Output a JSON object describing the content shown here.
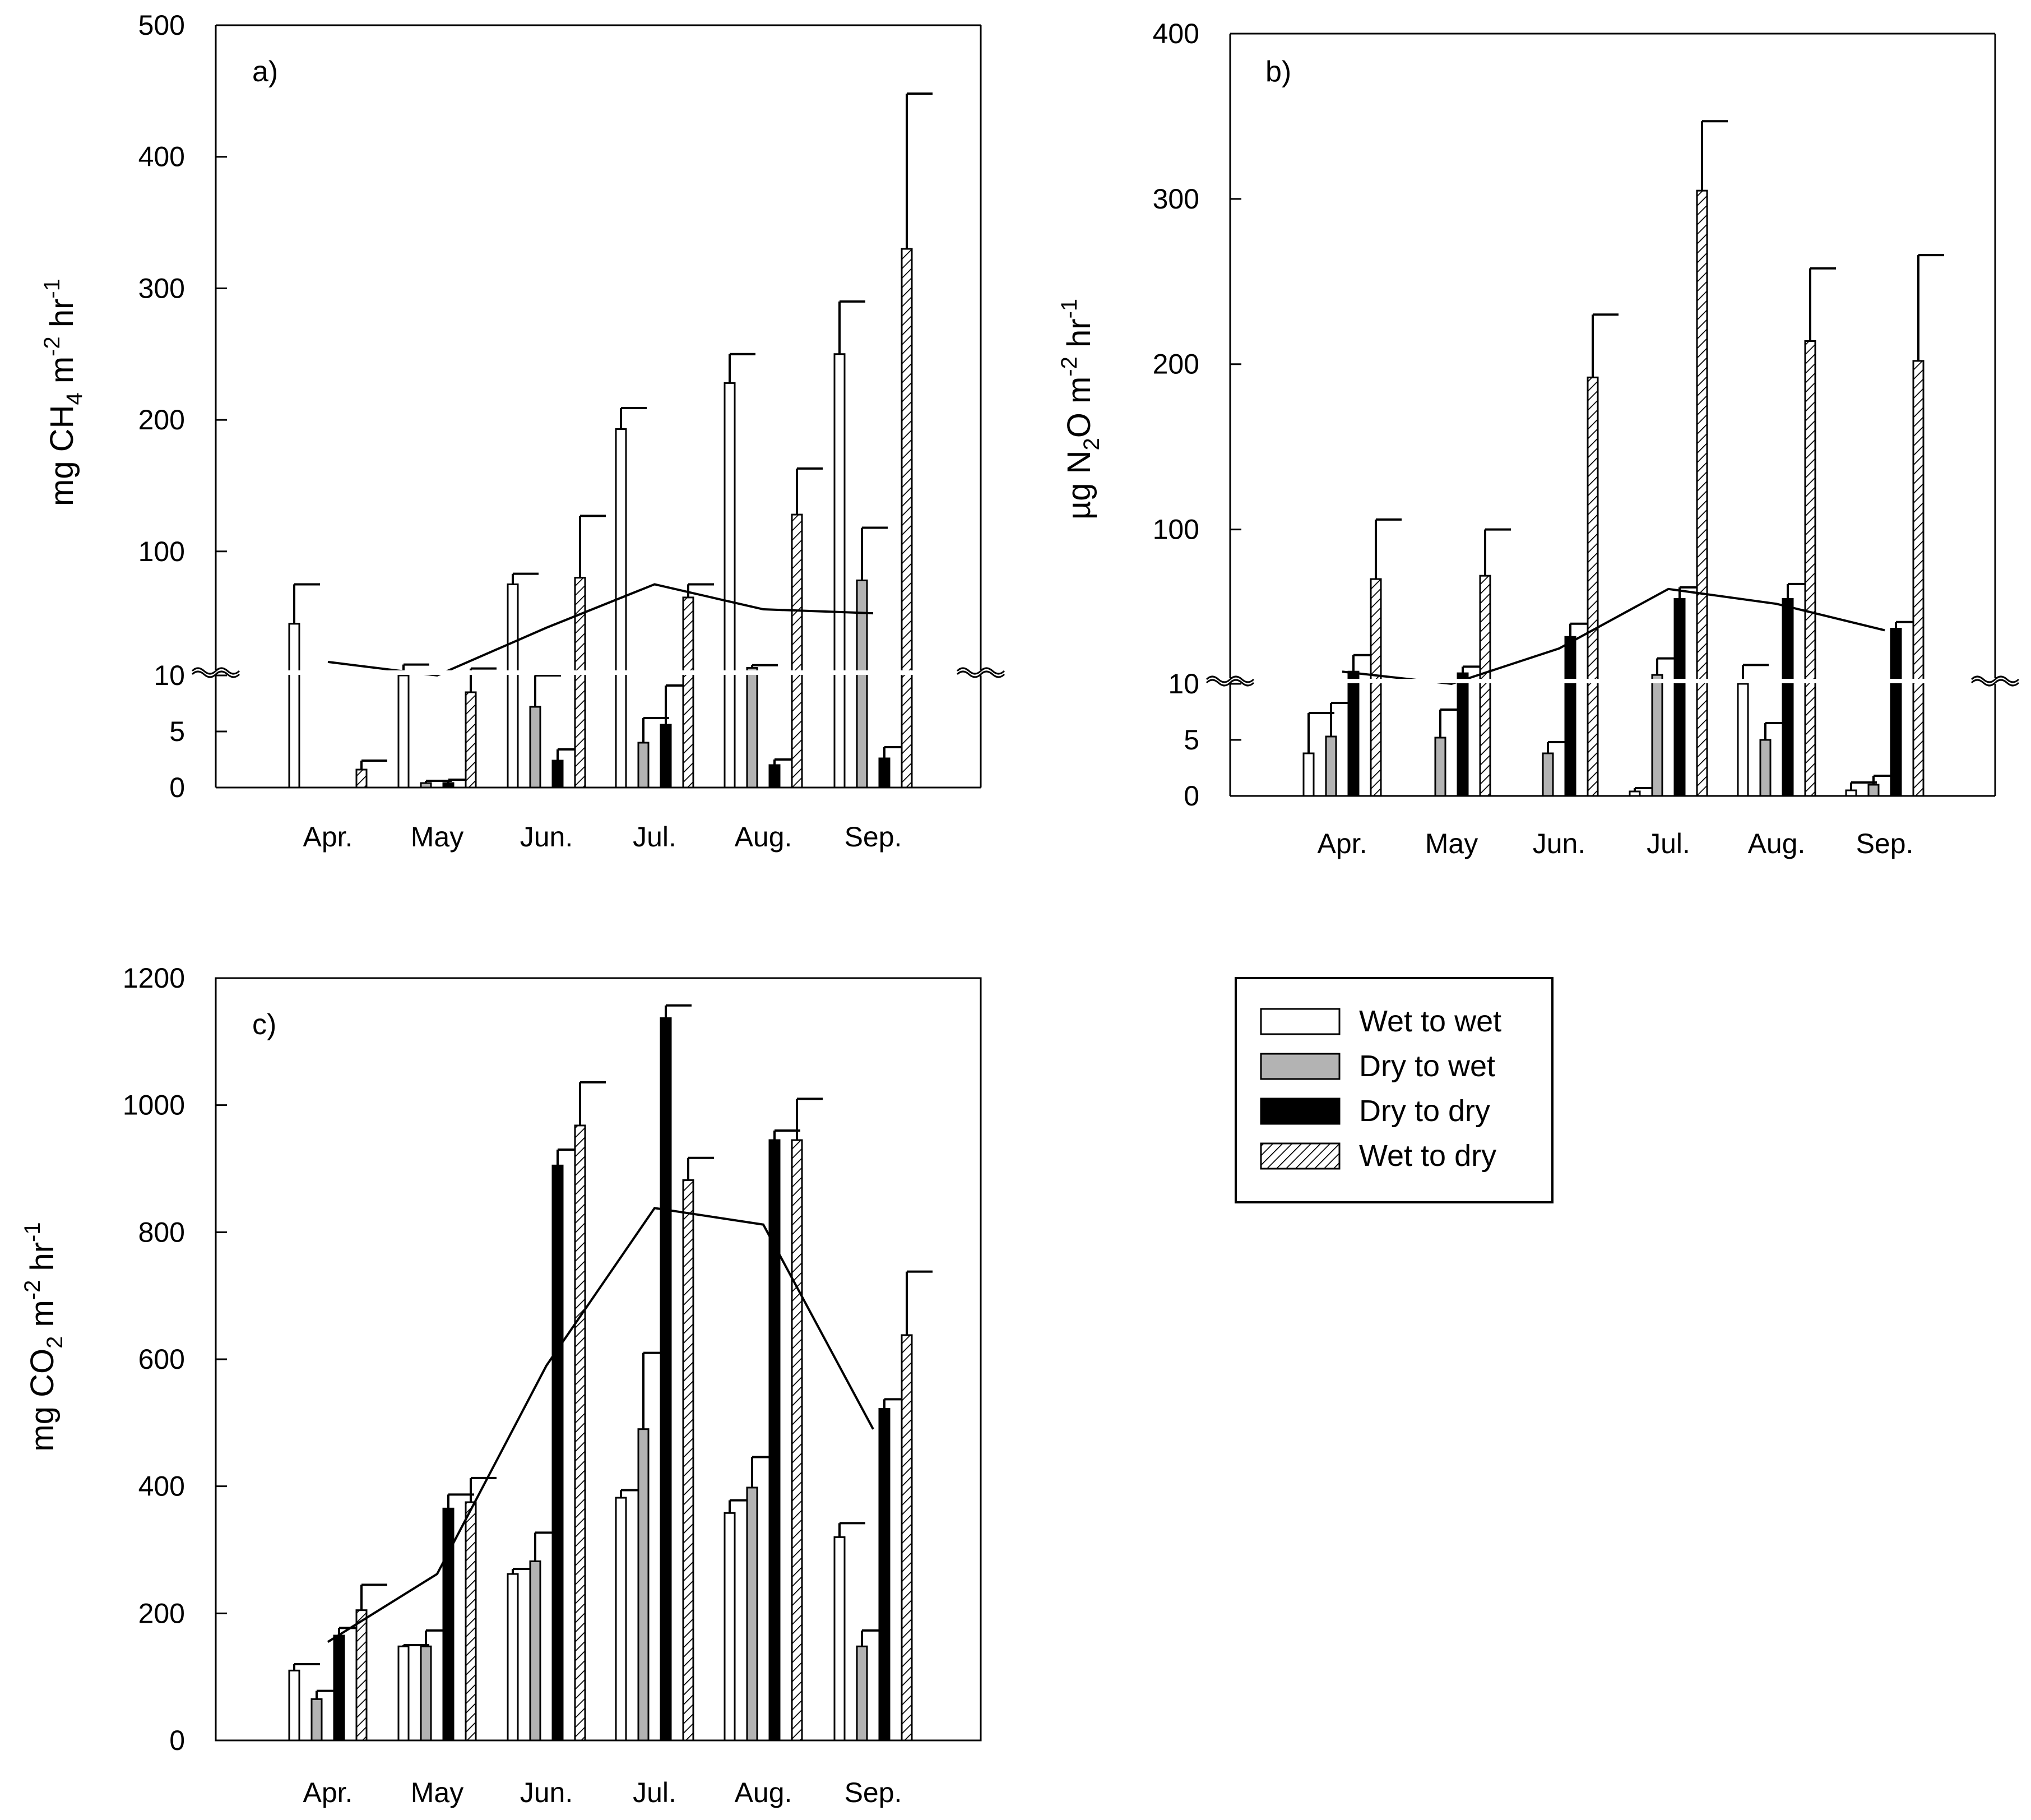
{
  "legend": {
    "entries": [
      {
        "label": "Wet to wet",
        "style": "white"
      },
      {
        "label": "Dry to wet",
        "style": "gray"
      },
      {
        "label": "Dry to dry",
        "style": "black"
      },
      {
        "label": "Wet to dry",
        "style": "hatch"
      }
    ]
  },
  "colors": {
    "gray": "#b3b3b3",
    "black": "#000000",
    "white": "#ffffff"
  },
  "chart_data": [
    {
      "type": "bar",
      "panel": "a)",
      "ylabel": {
        "pre": "mg CH",
        "sub1": "4",
        "mid": " m",
        "sup1": "-2",
        "post": " hr",
        "sup2": "-1"
      },
      "axis_break": "broken y axis at 10",
      "y_lower": {
        "range": [
          0,
          10
        ],
        "ticks": [
          "0",
          "5",
          "10"
        ]
      },
      "y_upper": {
        "range": [
          10,
          500
        ],
        "ticks": [
          "100",
          "200",
          "300",
          "400",
          "500"
        ]
      },
      "categories": [
        "Apr.",
        "May",
        "Jun.",
        "Jul.",
        "Aug.",
        "Sep."
      ],
      "series": [
        {
          "name": "Wet to wet",
          "values": [
            45,
            10,
            75,
            193,
            228,
            250
          ],
          "errors": [
            30,
            4,
            8,
            16,
            22,
            40
          ]
        },
        {
          "name": "Dry to wet",
          "values": [
            0,
            0.4,
            7.2,
            4.0,
            11.5,
            78
          ],
          "errors": [
            0,
            0.2,
            2.8,
            2.2,
            2,
            40
          ]
        },
        {
          "name": "Dry to dry",
          "values": [
            0,
            0.4,
            2.4,
            5.6,
            2.0,
            2.6
          ],
          "errors": [
            0,
            0.3,
            1,
            3.5,
            0.5,
            1
          ]
        },
        {
          "name": "Wet to dry",
          "values": [
            1.6,
            8.5,
            80,
            65,
            128,
            330
          ],
          "errors": [
            0.8,
            2.5,
            47,
            10,
            35,
            118
          ]
        }
      ],
      "mean_line": [
        16,
        10,
        42,
        75,
        56,
        53
      ]
    },
    {
      "type": "bar",
      "panel": "b)",
      "ylabel": {
        "pre": "µg N",
        "sub1": "2",
        "mid": "O m",
        "sup1": "-2",
        "post": " hr",
        "sup2": "-1"
      },
      "axis_break": "broken y axis at 10",
      "y_lower": {
        "range": [
          0,
          10
        ],
        "ticks": [
          "0",
          "5",
          "10"
        ]
      },
      "y_upper": {
        "range": [
          10,
          400
        ],
        "ticks": [
          "100",
          "200",
          "300",
          "400"
        ]
      },
      "categories": [
        "Apr.",
        "May",
        "Jun.",
        "Jul.",
        "Aug.",
        "Sep."
      ],
      "series": [
        {
          "name": "Wet to wet",
          "values": [
            3.8,
            0,
            0,
            0.4,
            10,
            0.5
          ],
          "errors": [
            3.6,
            0,
            0,
            0.3,
            8,
            0.7
          ]
        },
        {
          "name": "Dry to wet",
          "values": [
            5.3,
            5.2,
            3.8,
            12,
            5.0,
            1.0
          ],
          "errors": [
            3,
            2.5,
            1,
            10,
            1.5,
            0.8
          ]
        },
        {
          "name": "Dry to dry",
          "values": [
            14,
            13,
            35,
            58,
            58,
            40
          ],
          "errors": [
            10,
            4,
            8,
            7,
            9,
            4
          ]
        },
        {
          "name": "Wet to dry",
          "values": [
            70,
            72,
            192,
            305,
            214,
            202
          ],
          "errors": [
            36,
            28,
            38,
            42,
            44,
            64
          ]
        }
      ],
      "mean_line": [
        14,
        10,
        28,
        64,
        55,
        39
      ]
    },
    {
      "type": "bar",
      "panel": "c)",
      "ylabel": {
        "pre": "mg CO",
        "sub1": "2",
        "mid": " m",
        "sup1": "-2",
        "post": " hr",
        "sup2": "-1"
      },
      "ylim": [
        0,
        1200
      ],
      "ticks": [
        "0",
        "200",
        "400",
        "600",
        "800",
        "1000",
        "1200"
      ],
      "categories": [
        "Apr.",
        "May",
        "Jun.",
        "Jul.",
        "Aug.",
        "Sep."
      ],
      "series": [
        {
          "name": "Wet to wet",
          "values": [
            110,
            148,
            262,
            382,
            358,
            320
          ],
          "errors": [
            10,
            2,
            8,
            12,
            20,
            22
          ]
        },
        {
          "name": "Dry to wet",
          "values": [
            65,
            148,
            282,
            490,
            398,
            148
          ],
          "errors": [
            13,
            25,
            45,
            120,
            48,
            25
          ]
        },
        {
          "name": "Dry to dry",
          "values": [
            165,
            365,
            905,
            1137,
            945,
            522
          ],
          "errors": [
            12,
            22,
            25,
            20,
            15,
            15
          ]
        },
        {
          "name": "Wet to dry",
          "values": [
            205,
            375,
            968,
            882,
            945,
            638
          ],
          "errors": [
            40,
            38,
            68,
            35,
            65,
            100
          ]
        }
      ],
      "mean_line": [
        155,
        262,
        590,
        838,
        812,
        490
      ]
    }
  ]
}
